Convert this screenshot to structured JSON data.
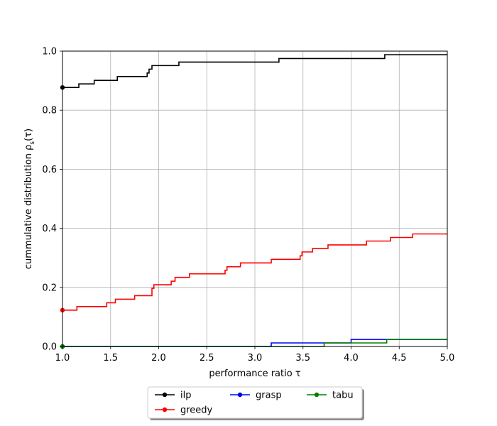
{
  "chart_data": {
    "type": "line",
    "step": "post",
    "xlabel": "performance ratio τ",
    "ylabel": "cummulative distribution ρ",
    "ylabel_sub": "s",
    "ylabel_suffix": "(τ)",
    "xlim": [
      1.0,
      5.0
    ],
    "ylim": [
      0.0,
      1.0
    ],
    "x_ticks": [
      "1.0",
      "1.5",
      "2.0",
      "2.5",
      "3.0",
      "3.5",
      "4.0",
      "4.5",
      "5.0"
    ],
    "y_ticks": [
      "0.0",
      "0.2",
      "0.4",
      "0.6",
      "0.8",
      "1.0"
    ],
    "grid": true,
    "legend_position": "below",
    "series": [
      {
        "name": "ilp",
        "color": "#000000",
        "marker_at_start": true,
        "x": [
          1.0,
          1.07,
          1.17,
          1.33,
          1.57,
          1.88,
          1.9,
          1.93,
          2.21,
          3.25,
          4.35,
          5.0
        ],
        "y": [
          0.877,
          0.877,
          0.889,
          0.901,
          0.914,
          0.926,
          0.939,
          0.951,
          0.963,
          0.975,
          0.988,
          0.988
        ]
      },
      {
        "name": "greedy",
        "color": "#ff0000",
        "marker_at_start": true,
        "x": [
          1.0,
          1.07,
          1.15,
          1.46,
          1.55,
          1.75,
          1.93,
          1.95,
          2.1,
          2.13,
          2.17,
          2.32,
          2.69,
          2.71,
          2.85,
          3.17,
          3.47,
          3.49,
          3.6,
          3.76,
          4.16,
          4.41,
          4.64,
          5.0
        ],
        "y": [
          0.123,
          0.123,
          0.135,
          0.148,
          0.16,
          0.172,
          0.197,
          0.209,
          0.209,
          0.221,
          0.234,
          0.246,
          0.258,
          0.27,
          0.283,
          0.295,
          0.307,
          0.32,
          0.332,
          0.344,
          0.357,
          0.369,
          0.381,
          0.381
        ]
      },
      {
        "name": "grasp",
        "color": "#0000ff",
        "marker_at_start": true,
        "x": [
          1.0,
          3.17,
          3.72,
          4.0,
          4.37,
          5.0
        ],
        "y": [
          0.0,
          0.012,
          0.012,
          0.024,
          0.024,
          0.024
        ]
      },
      {
        "name": "tabu",
        "color": "#008000",
        "marker_at_start": true,
        "x": [
          1.0,
          3.72,
          4.37,
          5.0
        ],
        "y": [
          0.0,
          0.012,
          0.024,
          0.024
        ]
      }
    ]
  }
}
